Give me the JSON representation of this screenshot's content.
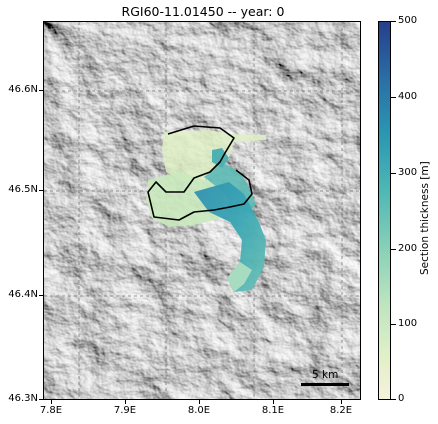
{
  "title": "RGI60-11.01450 -- year: 0",
  "axes": {
    "y_ticks": [
      "46.6N",
      "46.5N",
      "46.4N",
      "46.3N"
    ],
    "x_ticks": [
      "7.8E",
      "7.9E",
      "8.0E",
      "8.1E",
      "8.2E"
    ]
  },
  "colorbar": {
    "label": "Section thickness [m]",
    "ticks": [
      "500",
      "400",
      "300",
      "200",
      "100",
      "0"
    ],
    "range": [
      0,
      500
    ],
    "colors": [
      "#f6f2dc",
      "#bde5bf",
      "#4fb8b5",
      "#2b97b2",
      "#263f8c"
    ]
  },
  "scale_bar": {
    "label": "5 km"
  },
  "grid": true
}
